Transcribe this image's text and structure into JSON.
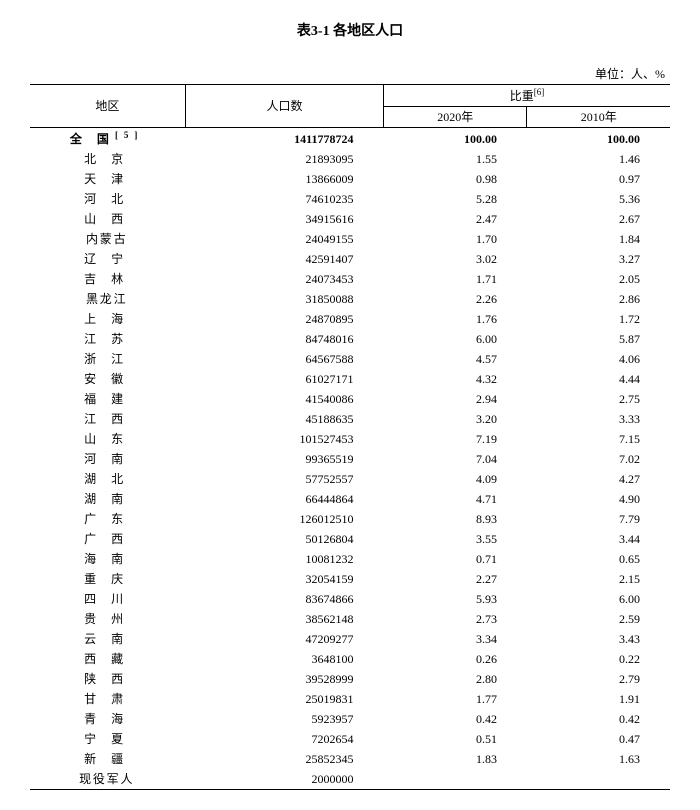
{
  "title": "表3-1 各地区人口",
  "unit_label": "单位：人、%",
  "table": {
    "columns": {
      "region": "地区",
      "population": "人口数",
      "ratio": "比重",
      "ratio_sup": "[6]",
      "y2020": "2020年",
      "y2010": "2010年"
    },
    "total_row": {
      "region": "全 国",
      "region_sup": "[5]",
      "population": "1411778724",
      "r2020": "100.00",
      "r2010": "100.00"
    },
    "rows": [
      {
        "region": "北 京",
        "pop": "21893095",
        "r2020": "1.55",
        "r2010": "1.46"
      },
      {
        "region": "天 津",
        "pop": "13866009",
        "r2020": "0.98",
        "r2010": "0.97"
      },
      {
        "region": "河 北",
        "pop": "74610235",
        "r2020": "5.28",
        "r2010": "5.36"
      },
      {
        "region": "山 西",
        "pop": "34915616",
        "r2020": "2.47",
        "r2010": "2.67"
      },
      {
        "region": "内蒙古",
        "pop": "24049155",
        "r2020": "1.70",
        "r2010": "1.84"
      },
      {
        "region": "辽 宁",
        "pop": "42591407",
        "r2020": "3.02",
        "r2010": "3.27"
      },
      {
        "region": "吉 林",
        "pop": "24073453",
        "r2020": "1.71",
        "r2010": "2.05"
      },
      {
        "region": "黑龙江",
        "pop": "31850088",
        "r2020": "2.26",
        "r2010": "2.86"
      },
      {
        "region": "上 海",
        "pop": "24870895",
        "r2020": "1.76",
        "r2010": "1.72"
      },
      {
        "region": "江 苏",
        "pop": "84748016",
        "r2020": "6.00",
        "r2010": "5.87"
      },
      {
        "region": "浙 江",
        "pop": "64567588",
        "r2020": "4.57",
        "r2010": "4.06"
      },
      {
        "region": "安 徽",
        "pop": "61027171",
        "r2020": "4.32",
        "r2010": "4.44"
      },
      {
        "region": "福 建",
        "pop": "41540086",
        "r2020": "2.94",
        "r2010": "2.75"
      },
      {
        "region": "江 西",
        "pop": "45188635",
        "r2020": "3.20",
        "r2010": "3.33"
      },
      {
        "region": "山 东",
        "pop": "101527453",
        "r2020": "7.19",
        "r2010": "7.15"
      },
      {
        "region": "河 南",
        "pop": "99365519",
        "r2020": "7.04",
        "r2010": "7.02"
      },
      {
        "region": "湖 北",
        "pop": "57752557",
        "r2020": "4.09",
        "r2010": "4.27"
      },
      {
        "region": "湖 南",
        "pop": "66444864",
        "r2020": "4.71",
        "r2010": "4.90"
      },
      {
        "region": "广 东",
        "pop": "126012510",
        "r2020": "8.93",
        "r2010": "7.79"
      },
      {
        "region": "广 西",
        "pop": "50126804",
        "r2020": "3.55",
        "r2010": "3.44"
      },
      {
        "region": "海 南",
        "pop": "10081232",
        "r2020": "0.71",
        "r2010": "0.65"
      },
      {
        "region": "重 庆",
        "pop": "32054159",
        "r2020": "2.27",
        "r2010": "2.15"
      },
      {
        "region": "四 川",
        "pop": "83674866",
        "r2020": "5.93",
        "r2010": "6.00"
      },
      {
        "region": "贵 州",
        "pop": "38562148",
        "r2020": "2.73",
        "r2010": "2.59"
      },
      {
        "region": "云 南",
        "pop": "47209277",
        "r2020": "3.34",
        "r2010": "3.43"
      },
      {
        "region": "西 藏",
        "pop": "3648100",
        "r2020": "0.26",
        "r2010": "0.22"
      },
      {
        "region": "陕 西",
        "pop": "39528999",
        "r2020": "2.80",
        "r2010": "2.79"
      },
      {
        "region": "甘 肃",
        "pop": "25019831",
        "r2020": "1.77",
        "r2010": "1.91"
      },
      {
        "region": "青 海",
        "pop": "5923957",
        "r2020": "0.42",
        "r2010": "0.42"
      },
      {
        "region": "宁 夏",
        "pop": "7202654",
        "r2020": "0.51",
        "r2010": "0.47"
      },
      {
        "region": "新 疆",
        "pop": "25852345",
        "r2020": "1.83",
        "r2010": "1.63"
      }
    ],
    "footer_row": {
      "region": "现役军人",
      "pop": "2000000",
      "r2020": "",
      "r2010": ""
    }
  },
  "styling": {
    "font_family": "SimSun",
    "font_size_body": 12,
    "font_size_title": 14,
    "text_color": "#000000",
    "background_color": "#ffffff",
    "border_color": "#000000",
    "col_widths": {
      "region": 160,
      "population": 200,
      "y2020": 140,
      "y2010": 140
    }
  }
}
